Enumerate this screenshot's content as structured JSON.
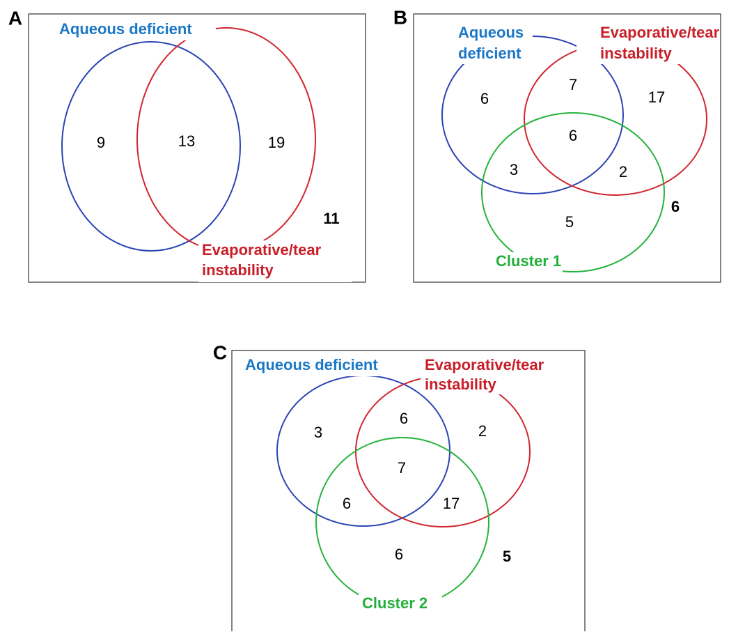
{
  "panels": [
    {
      "letter": "A",
      "aqueous_label": [
        "Aqueous deficient"
      ],
      "evaporative_label": [
        "Evaporative/tear",
        "instability"
      ],
      "regions": {
        "aqueous_only": 9,
        "both": 13,
        "evaporative_only": 19
      },
      "outside": 11
    },
    {
      "letter": "B",
      "aqueous_label": [
        "Aqueous",
        "deficient"
      ],
      "evaporative_label": [
        "Evaporative/tear",
        "instability"
      ],
      "cluster_label": "Cluster 1",
      "regions": {
        "aqueous_only": 6,
        "aqueous_evaporative": 7,
        "evaporative_only": 17,
        "all": 6,
        "aqueous_cluster": 3,
        "evaporative_cluster": 2,
        "cluster_only": 5
      },
      "outside": 6
    },
    {
      "letter": "C",
      "aqueous_label": [
        "Aqueous deficient"
      ],
      "evaporative_label": [
        "Evaporative/tear",
        "instability"
      ],
      "cluster_label": "Cluster 2",
      "regions": {
        "aqueous_only": 3,
        "aqueous_evaporative": 6,
        "evaporative_only": 2,
        "all": 7,
        "aqueous_cluster": 6,
        "evaporative_cluster": 17,
        "cluster_only": 6
      },
      "outside": 5
    }
  ]
}
